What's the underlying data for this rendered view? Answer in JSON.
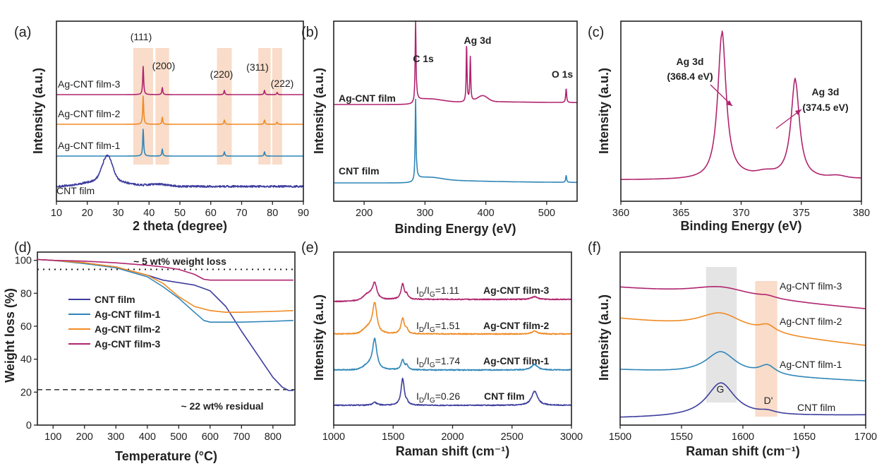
{
  "colors": {
    "cnt": "#3d3d9e",
    "f1": "#2f86b8",
    "f2": "#f08a24",
    "f3": "#b0246f",
    "bandPink": "#f9dcc9",
    "bandGray": "#e4e4e4"
  },
  "panels": {
    "a": {
      "label": "(a)",
      "xlabel": "2 theta (degree)",
      "ylabel": "Intensity (a.u.)",
      "xticks": [
        "10",
        "20",
        "30",
        "40",
        "50",
        "60",
        "70",
        "80",
        "90"
      ],
      "reflections": [
        "(111)",
        "(200)",
        "(220)",
        "(311)",
        "(222)"
      ],
      "series": [
        "Ag-CNT film-3",
        "Ag-CNT film-2",
        "Ag-CNT film-1",
        "CNT film"
      ]
    },
    "b": {
      "label": "(b)",
      "xlabel": "Binding Energy (eV)",
      "ylabel": "Intensity (a.u.)",
      "xticks": [
        "200",
        "300",
        "400",
        "500"
      ],
      "peaks": [
        "C 1s",
        "Ag 3d",
        "O 1s"
      ],
      "series": [
        "Ag-CNT film",
        "CNT film"
      ]
    },
    "c": {
      "label": "(c)",
      "xlabel": "Binding Energy (eV)",
      "ylabel": "Intensity (a.u.)",
      "xticks": [
        "360",
        "365",
        "370",
        "375",
        "380"
      ],
      "peak1_name": "Ag 3d",
      "peak1_value": "(368.4 eV)",
      "peak2_name": "Ag 3d",
      "peak2_value": "(374.5 eV)"
    },
    "d": {
      "label": "(d)",
      "xlabel": "Temperature (°C)",
      "ylabel": "Weight loss (%)",
      "xticks": [
        "100",
        "200",
        "300",
        "400",
        "500",
        "600",
        "700",
        "800"
      ],
      "yticks": [
        "0",
        "20",
        "40",
        "60",
        "80",
        "100"
      ],
      "note_top": "~ 5 wt% weight loss",
      "note_bottom": "~ 22 wt% residual",
      "legend": [
        "CNT film",
        "Ag-CNT film-1",
        "Ag-CNT film-2",
        "Ag-CNT film-3"
      ]
    },
    "e": {
      "label": "(e)",
      "xlabel": "Raman shift (cm⁻¹)",
      "ylabel": "Intensity (a.u.)",
      "xticks": [
        "1000",
        "1500",
        "2000",
        "2500",
        "3000"
      ],
      "ratio_prefix": "I",
      "ratios": [
        "1.11",
        "1.51",
        "1.74",
        "0.26"
      ],
      "series": [
        "Ag-CNT film-3",
        "Ag-CNT film-2",
        "Ag-CNT film-1",
        "CNT film"
      ]
    },
    "f": {
      "label": "(f)",
      "xlabel": "Raman shift (cm⁻¹)",
      "ylabel": "Intensity (a.u.)",
      "xticks": [
        "1500",
        "1550",
        "1600",
        "1650",
        "1700"
      ],
      "bands": [
        "G",
        "D'"
      ],
      "series": [
        "Ag-CNT film-3",
        "Ag-CNT film-2",
        "Ag-CNT film-1",
        "CNT film"
      ]
    }
  },
  "chart_data": [
    {
      "panel": "a",
      "type": "line",
      "title": "",
      "xlabel": "2 theta (degree)",
      "ylabel": "Intensity (a.u.)",
      "xlim": [
        10,
        90
      ],
      "series": [
        {
          "name": "Ag-CNT film-3",
          "peaks_2theta": [
            38.1,
            44.3,
            64.4,
            77.4,
            81.5
          ]
        },
        {
          "name": "Ag-CNT film-2",
          "peaks_2theta": [
            38.1,
            44.3,
            64.4,
            77.4,
            81.5
          ]
        },
        {
          "name": "Ag-CNT film-1",
          "peaks_2theta": [
            38.1,
            44.3,
            64.4,
            77.4
          ]
        },
        {
          "name": "CNT film",
          "peaks_2theta": [
            26.0
          ]
        }
      ],
      "reflections": [
        {
          "label": "(111)",
          "x": 38.1
        },
        {
          "label": "(200)",
          "x": 44.3
        },
        {
          "label": "(220)",
          "x": 64.4
        },
        {
          "label": "(311)",
          "x": 77.4
        },
        {
          "label": "(222)",
          "x": 81.5
        }
      ]
    },
    {
      "panel": "b",
      "type": "line",
      "title": "",
      "xlabel": "Binding Energy (eV)",
      "ylabel": "Intensity (a.u.)",
      "xlim": [
        150,
        550
      ],
      "series": [
        {
          "name": "Ag-CNT film",
          "peaks_eV": [
            284.6,
            368.4,
            374.5,
            532
          ]
        },
        {
          "name": "CNT film",
          "peaks_eV": [
            284.6,
            532
          ]
        }
      ]
    },
    {
      "panel": "c",
      "type": "line",
      "title": "",
      "xlabel": "Binding Energy (eV)",
      "ylabel": "Intensity (a.u.)",
      "xlim": [
        360,
        380
      ],
      "series": [
        {
          "name": "Ag 3d",
          "peaks_eV": [
            368.4,
            374.5
          ],
          "relative_height": [
            1.0,
            0.65
          ]
        }
      ]
    },
    {
      "panel": "d",
      "type": "line",
      "title": "",
      "xlabel": "Temperature (°C)",
      "ylabel": "Weight loss (%)",
      "xlim": [
        50,
        870
      ],
      "ylim": [
        0,
        105
      ],
      "reference_lines": [
        94.5,
        21.5
      ],
      "series": [
        {
          "name": "CNT film",
          "x": [
            50,
            100,
            200,
            300,
            400,
            450,
            500,
            550,
            600,
            650,
            700,
            750,
            800,
            830,
            850,
            865
          ],
          "y": [
            100.5,
            100,
            98.5,
            96,
            91,
            88,
            86.5,
            85,
            81.5,
            72,
            57,
            43,
            29,
            23,
            21,
            21
          ]
        },
        {
          "name": "Ag-CNT film-1",
          "x": [
            50,
            100,
            200,
            300,
            400,
            450,
            500,
            550,
            580,
            600,
            650,
            700,
            800,
            865
          ],
          "y": [
            100.5,
            100,
            98,
            95.5,
            90,
            84,
            77,
            68.5,
            63.5,
            62.5,
            62.5,
            62.5,
            63,
            63.5
          ]
        },
        {
          "name": "Ag-CNT film-2",
          "x": [
            50,
            100,
            200,
            300,
            400,
            450,
            500,
            550,
            600,
            650,
            700,
            800,
            865
          ],
          "y": [
            100.5,
            100,
            98.5,
            96,
            91,
            86,
            78,
            72,
            69.5,
            68.5,
            68.5,
            69,
            69.5
          ]
        },
        {
          "name": "Ag-CNT film-3",
          "x": [
            50,
            100,
            200,
            300,
            400,
            450,
            500,
            550,
            580,
            600,
            700,
            800,
            865
          ],
          "y": [
            100.5,
            100,
            99.5,
            98.5,
            97,
            96,
            94.5,
            91.5,
            88.5,
            88,
            88,
            88,
            88
          ]
        }
      ]
    },
    {
      "panel": "e",
      "type": "line",
      "title": "",
      "xlabel": "Raman shift (cm⁻¹)",
      "ylabel": "Intensity (a.u.)",
      "xlim": [
        1000,
        3000
      ],
      "series": [
        {
          "name": "Ag-CNT film-3",
          "ID_IG": 1.11
        },
        {
          "name": "Ag-CNT film-2",
          "ID_IG": 1.51
        },
        {
          "name": "Ag-CNT film-1",
          "ID_IG": 1.74
        },
        {
          "name": "CNT film",
          "ID_IG": 0.26
        }
      ],
      "bands_cm-1": {
        "D": 1345,
        "G": 1580,
        "2D": 2690
      }
    },
    {
      "panel": "f",
      "type": "line",
      "title": "",
      "xlabel": "Raman shift (cm⁻¹)",
      "ylabel": "Intensity (a.u.)",
      "xlim": [
        1500,
        1700
      ],
      "highlight_bands": [
        {
          "label": "G",
          "range": [
            1570,
            1595
          ]
        },
        {
          "label": "D'",
          "range": [
            1610,
            1628
          ]
        }
      ],
      "series": [
        {
          "name": "Ag-CNT film-3"
        },
        {
          "name": "Ag-CNT film-2"
        },
        {
          "name": "Ag-CNT film-1"
        },
        {
          "name": "CNT film"
        }
      ]
    }
  ]
}
